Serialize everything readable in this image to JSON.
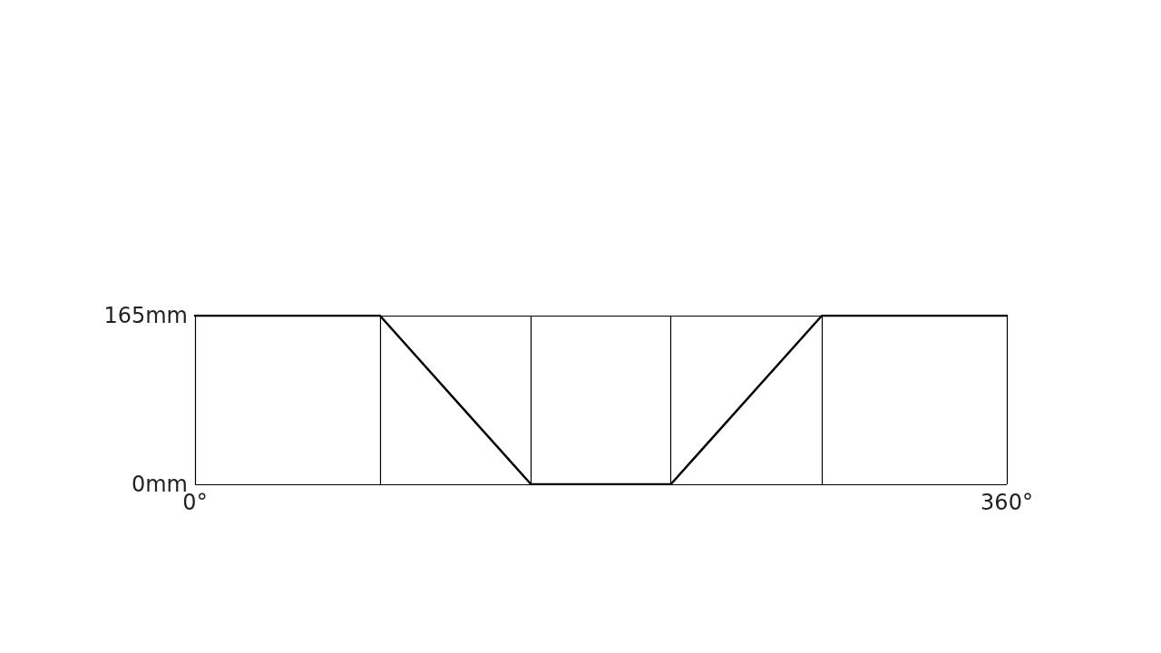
{
  "chart_data": {
    "type": "line",
    "x": [
      0,
      82,
      149,
      211,
      278,
      360
    ],
    "series": [
      {
        "color": "#000000",
        "values": [
          165,
          165,
          0,
          0,
          165,
          165
        ]
      }
    ],
    "xlim": [
      0,
      360
    ],
    "xticks": [
      {
        "value": 0,
        "label": "0°"
      },
      {
        "value": 82,
        "label": null
      },
      {
        "value": 149,
        "label": null
      },
      {
        "value": 211,
        "label": null
      },
      {
        "value": 278,
        "label": null
      },
      {
        "value": 360,
        "label": "360°"
      }
    ],
    "ylim": [
      0,
      165
    ],
    "yticks": [
      {
        "value": 0,
        "label": "0mm"
      },
      {
        "value": 165,
        "label": "165mm"
      }
    ],
    "grid": true,
    "marker": "none",
    "line_style": "solid"
  }
}
